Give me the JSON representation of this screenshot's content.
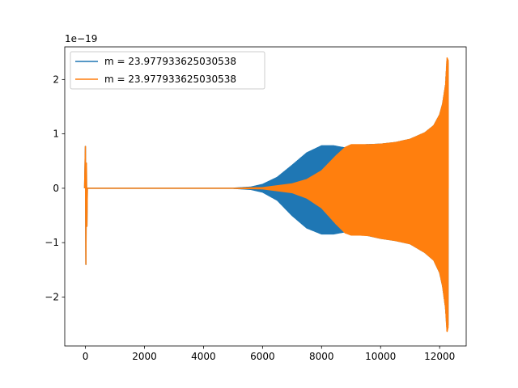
{
  "chart_data": {
    "type": "line",
    "title": "",
    "xlabel": "",
    "ylabel": "",
    "xlim": [
      -700,
      12900
    ],
    "ylim": [
      -2.9,
      2.6
    ],
    "y_offset_label": "1e−19",
    "x_ticks": [
      0,
      2000,
      4000,
      6000,
      8000,
      10000,
      12000
    ],
    "x_tick_labels": [
      "0",
      "2000",
      "4000",
      "6000",
      "8000",
      "10000",
      "12000"
    ],
    "y_ticks": [
      -2,
      -1,
      0,
      1,
      2
    ],
    "y_tick_labels": [
      "−2",
      "−1",
      "0",
      "1",
      "2"
    ],
    "legend_position": "upper-left",
    "grid": false,
    "series": [
      {
        "name": "m = 23.977933625030538",
        "color": "#1f77b4",
        "envelope": {
          "x": [
            0,
            5000,
            5600,
            6000,
            6500,
            7000,
            7500,
            8000,
            8400,
            8800,
            9000,
            9500,
            10000,
            10500,
            11000,
            11500,
            11800,
            12000,
            12100,
            12200,
            12250,
            12290
          ],
          "upper": [
            0,
            0,
            0.02,
            0.07,
            0.2,
            0.42,
            0.65,
            0.78,
            0.78,
            0.74,
            0.76,
            0.8,
            0.81,
            0.84,
            0.9,
            1.02,
            1.15,
            1.35,
            1.55,
            1.9,
            2.35,
            2.3
          ],
          "lower": [
            0,
            0,
            -0.02,
            -0.07,
            -0.22,
            -0.5,
            -0.73,
            -0.84,
            -0.84,
            -0.8,
            -0.82,
            -0.86,
            -0.92,
            -0.96,
            -1.02,
            -1.18,
            -1.32,
            -1.55,
            -1.8,
            -2.2,
            -2.6,
            -2.5
          ]
        },
        "initial_spike": {
          "x": 0,
          "upper": 0.77,
          "lower": -1.4
        }
      },
      {
        "name": "m = 23.977933625030538",
        "color": "#ff7f0e",
        "envelope": {
          "x": [
            0,
            5000,
            6000,
            7000,
            7500,
            8000,
            8500,
            8800,
            9000,
            9300,
            9600,
            10000,
            10500,
            11000,
            11500,
            11800,
            12000,
            12100,
            12200,
            12250,
            12290
          ],
          "upper": [
            0,
            0,
            0.01,
            0.08,
            0.16,
            0.32,
            0.6,
            0.75,
            0.8,
            0.8,
            0.8,
            0.81,
            0.84,
            0.9,
            1.02,
            1.15,
            1.35,
            1.55,
            1.9,
            2.4,
            2.35
          ],
          "lower": [
            0,
            0,
            -0.01,
            -0.08,
            -0.18,
            -0.36,
            -0.66,
            -0.82,
            -0.86,
            -0.86,
            -0.87,
            -0.92,
            -0.96,
            -1.02,
            -1.18,
            -1.32,
            -1.55,
            -1.8,
            -2.2,
            -2.65,
            -2.55
          ]
        },
        "initial_spike": {
          "x": 0,
          "upper": 0.77,
          "lower": -1.4
        }
      }
    ]
  }
}
